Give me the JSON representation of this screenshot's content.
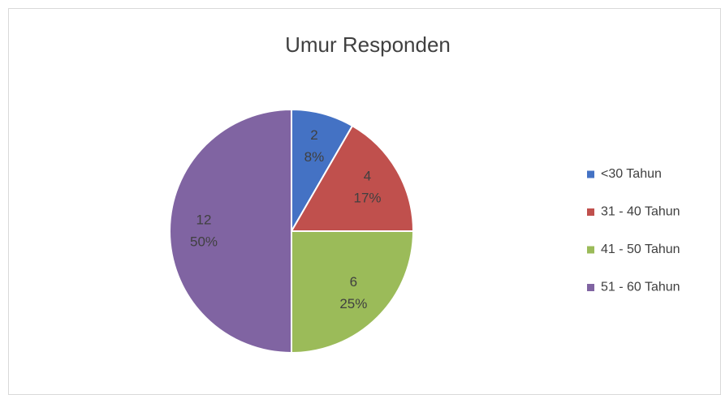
{
  "chart_data": {
    "type": "pie",
    "title": "Umur Responden",
    "categories": [
      "<30 Tahun",
      "31 - 40 Tahun",
      "41 - 50 Tahun",
      "51 - 60 Tahun"
    ],
    "values": [
      2,
      4,
      6,
      12
    ],
    "percent_labels": [
      "8%",
      "17%",
      "25%",
      "50%"
    ],
    "colors": [
      "#4472c4",
      "#c0504d",
      "#9bbb59",
      "#8064a2"
    ],
    "legend": "right"
  }
}
